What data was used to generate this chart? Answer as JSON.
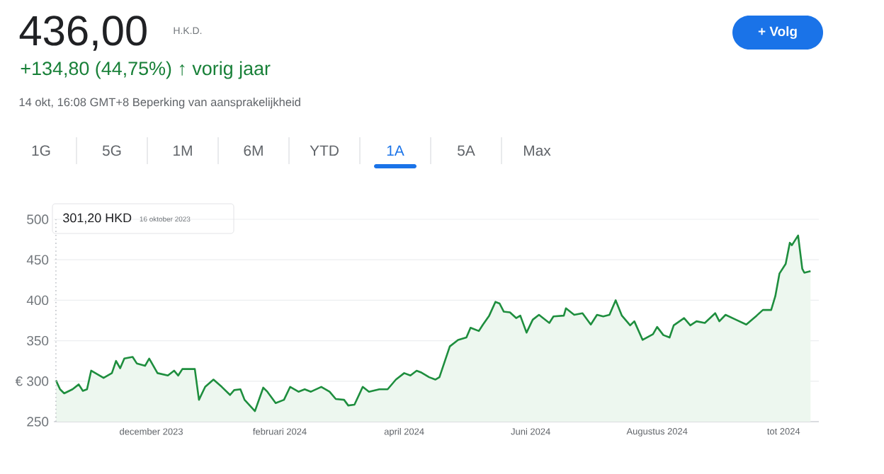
{
  "chart_data": {
    "type": "area",
    "title": "436,00",
    "subtitle": "H.K.D.",
    "annotations": [
      "+134,80 (44,75%) ↑ vorig jaar",
      "14 okt, 16:08 GMT+8 Beperking van aansprakelijkheid",
      "1G",
      "5G",
      "1M",
      "6M",
      "YTD",
      "1A",
      "5A",
      "Max",
      "+ Volg",
      "301,20 HKD",
      "16 oktober 2023"
    ],
    "x": [
      "2023-10-16",
      "2023-10-18",
      "2023-10-20",
      "2023-10-24",
      "2023-10-27",
      "2023-10-29",
      "2023-10-31",
      "2023-11-02",
      "2023-11-08",
      "2023-11-12",
      "2023-11-14",
      "2023-11-16",
      "2023-11-18",
      "2023-11-22",
      "2023-11-24",
      "2023-11-28",
      "2023-11-30",
      "2023-12-04",
      "2023-12-09",
      "2023-12-12",
      "2023-12-14",
      "2023-12-16",
      "2023-12-22",
      "2023-12-24",
      "2023-12-27",
      "2023-12-31",
      "2024-01-04",
      "2024-01-08",
      "2024-01-10",
      "2024-01-13",
      "2024-01-15",
      "2024-01-20",
      "2024-01-24",
      "2024-01-26",
      "2024-01-30",
      "2024-02-03",
      "2024-02-06",
      "2024-02-10",
      "2024-02-13",
      "2024-02-16",
      "2024-02-21",
      "2024-02-25",
      "2024-02-28",
      "2024-03-03",
      "2024-03-05",
      "2024-03-08",
      "2024-03-12",
      "2024-03-15",
      "2024-03-20",
      "2024-03-24",
      "2024-03-28",
      "2024-04-01",
      "2024-04-04",
      "2024-04-07",
      "2024-04-09",
      "2024-04-13",
      "2024-04-16",
      "2024-04-18",
      "2024-04-23",
      "2024-04-27",
      "2024-05-01",
      "2024-05-03",
      "2024-05-07",
      "2024-05-09",
      "2024-05-12",
      "2024-05-15",
      "2024-05-17",
      "2024-05-19",
      "2024-05-22",
      "2024-05-25",
      "2024-05-27",
      "2024-05-30",
      "2024-06-02",
      "2024-06-05",
      "2024-06-10",
      "2024-06-12",
      "2024-06-17",
      "2024-06-18",
      "2024-06-22",
      "2024-06-26",
      "2024-06-30",
      "2024-07-03",
      "2024-07-06",
      "2024-07-09",
      "2024-07-12",
      "2024-07-15",
      "2024-07-19",
      "2024-07-21",
      "2024-07-25",
      "2024-07-30",
      "2024-08-01",
      "2024-08-04",
      "2024-08-07",
      "2024-08-09",
      "2024-08-14",
      "2024-08-17",
      "2024-08-20",
      "2024-08-24",
      "2024-08-29",
      "2024-08-31",
      "2024-09-03",
      "2024-09-08",
      "2024-09-13",
      "2024-09-18",
      "2024-09-21",
      "2024-09-25",
      "2024-09-27",
      "2024-09-29",
      "2024-10-02",
      "2024-10-04",
      "2024-10-05",
      "2024-10-08",
      "2024-10-10",
      "2024-10-11",
      "2024-10-14"
    ],
    "values": [
      301,
      290,
      285,
      290,
      296,
      288,
      290,
      313,
      304,
      310,
      325,
      316,
      328,
      330,
      322,
      319,
      328,
      310,
      307,
      313,
      307,
      315,
      315,
      277,
      293,
      302,
      293,
      283,
      289,
      290,
      277,
      263,
      292,
      287,
      273,
      277,
      293,
      287,
      290,
      287,
      293,
      287,
      278,
      277,
      270,
      271,
      293,
      287,
      290,
      290,
      302,
      310,
      307,
      313,
      311,
      305,
      302,
      305,
      343,
      351,
      354,
      366,
      362,
      370,
      381,
      398,
      396,
      386,
      385,
      378,
      381,
      360,
      376,
      382,
      372,
      380,
      381,
      390,
      382,
      384,
      370,
      382,
      380,
      382,
      400,
      381,
      369,
      374,
      351,
      358,
      367,
      357,
      354,
      369,
      378,
      369,
      374,
      372,
      384,
      374,
      382,
      376,
      370,
      381,
      388,
      388,
      405,
      433,
      445,
      471,
      468,
      480,
      439,
      434,
      436
    ],
    "color": "#1e8e3e",
    "xlim": [
      "2023-10-15",
      "2024-10-18"
    ],
    "xticks": [
      {
        "value": "2023-12-01",
        "label": "december 2023"
      },
      {
        "value": "2024-02-01",
        "label": "februari 2024"
      },
      {
        "value": "2024-04-01",
        "label": "april 2024"
      },
      {
        "value": "2024-06-01",
        "label": "Juni 2024"
      },
      {
        "value": "2024-08-01",
        "label": "Augustus 2024"
      },
      {
        "value": "2024-10-01",
        "label": "tot 2024"
      }
    ],
    "ylim": [
      250,
      500
    ],
    "yticks": [
      250,
      {
        "value": 300,
        "label": "€ 300"
      },
      350,
      400,
      450,
      500
    ],
    "grid": "y",
    "ref_lines": [
      {
        "axis": "x",
        "value": "2023-10-16",
        "color": "#bdc1c6",
        "line_style": "dotted"
      }
    ]
  }
}
